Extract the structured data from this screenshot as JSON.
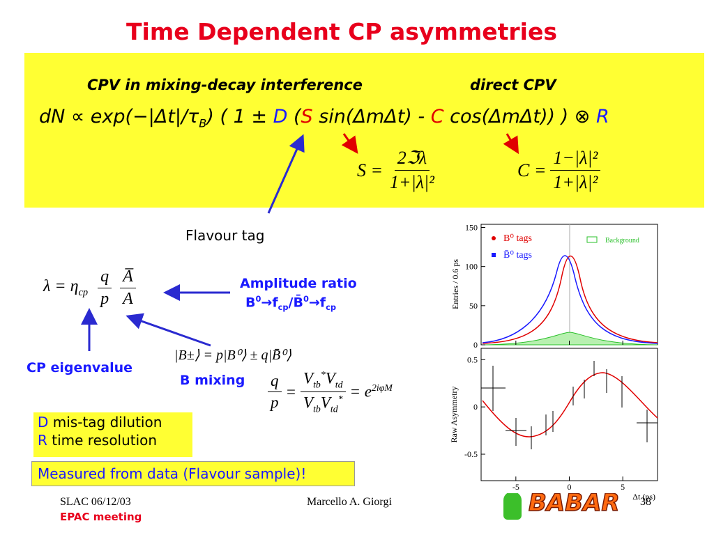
{
  "title": "Time Dependent CP asymmetries",
  "box": {
    "heading_left": "CPV in mixing-decay interference",
    "heading_right": "direct CPV",
    "formula": [
      {
        "text": "dN ∝ exp(−|Δt|/τ",
        "color": "#000000"
      },
      {
        "text": "B",
        "color": "#000000",
        "sub": true
      },
      {
        "text": ") ( 1 ± ",
        "color": "#000000"
      },
      {
        "text": "D",
        "color": "#1a1aff"
      },
      {
        "text": " (",
        "color": "#000000"
      },
      {
        "text": "S",
        "color": "#e00000"
      },
      {
        "text": " sin(ΔmΔt) - ",
        "color": "#000000"
      },
      {
        "text": "C",
        "color": "#e00000"
      },
      {
        "text": " cos(ΔmΔt)) ) ⊗ ",
        "color": "#000000"
      },
      {
        "text": "R",
        "color": "#1a1aff"
      }
    ],
    "s_formula": {
      "lhs": "S =",
      "num": "2ℑλ",
      "den": "1+|λ|²"
    },
    "c_formula": {
      "lhs": "C =",
      "num": "1−|λ|²",
      "den": "1+|λ|²"
    }
  },
  "flavour_tag": "Flavour tag",
  "lambda_formula": {
    "lhs": [
      {
        "text": "λ = η"
      },
      {
        "text": "cp",
        "sub": true
      }
    ],
    "q": "q",
    "p": "p",
    "num": "A̅",
    "den": "A"
  },
  "amplitude_ratio": {
    "label": "Amplitude ratio",
    "parts": [
      {
        "text": "B"
      },
      {
        "text": "0",
        "sup": true
      },
      {
        "text": "→f"
      },
      {
        "text": "cp",
        "sub": true
      },
      {
        "text": "/B̄"
      },
      {
        "text": "0",
        "sup": true
      },
      {
        "text": "→f"
      },
      {
        "text": "cp",
        "sub": true
      }
    ]
  },
  "cp_eigenvalue": "CP eigenvalue",
  "b_states": "|B±⟩ = p|B⁰⟩ ± q|B̄⁰⟩",
  "b_mixing": {
    "label": "B mixing",
    "q": "q",
    "p": "p",
    "num": [
      {
        "text": "V"
      },
      {
        "text": "tb",
        "sub": true
      },
      {
        "text": "*",
        "sup": true
      },
      {
        "text": "V"
      },
      {
        "text": "td",
        "sub": true
      }
    ],
    "den": [
      {
        "text": "V"
      },
      {
        "text": "tb",
        "sub": true
      },
      {
        "text": "V"
      },
      {
        "text": "td",
        "sub": true
      },
      {
        "text": "*",
        "sup": true
      }
    ],
    "rhs": [
      {
        "text": "= e"
      },
      {
        "text": "2iφM",
        "sup": true
      }
    ]
  },
  "legend_notes": [
    {
      "key": "D",
      "text": "mis-tag dilution"
    },
    {
      "key": "R",
      "text": "time resolution"
    }
  ],
  "measured_note": "Measured from data (Flavour sample)!",
  "footer": {
    "left": "SLAC 06/12/03",
    "event": "EPAC meeting",
    "author": "Marcello A. Giorgi",
    "logo": "BABAR",
    "page": "38"
  },
  "plot": {
    "xlim": [
      -8.25,
      8.25
    ],
    "top_ylim": [
      0,
      154
    ],
    "bottom_ylim": [
      -0.78,
      0.62
    ],
    "xticks": [
      -5,
      0,
      5
    ],
    "top_yticks": [
      0,
      50,
      100,
      150
    ],
    "bottom_yticks": [
      -0.5,
      0,
      0.5
    ],
    "xlabel": "Δt (ps)",
    "top_ylabel": "Entries / 0.6 ps",
    "bottom_ylabel": "Raw Asymmetry",
    "legend": [
      {
        "name": "B⁰ tags",
        "color": "#e00000"
      },
      {
        "name": "B̄⁰ tags",
        "color": "#1a1aff"
      }
    ],
    "background_label": "Background"
  }
}
